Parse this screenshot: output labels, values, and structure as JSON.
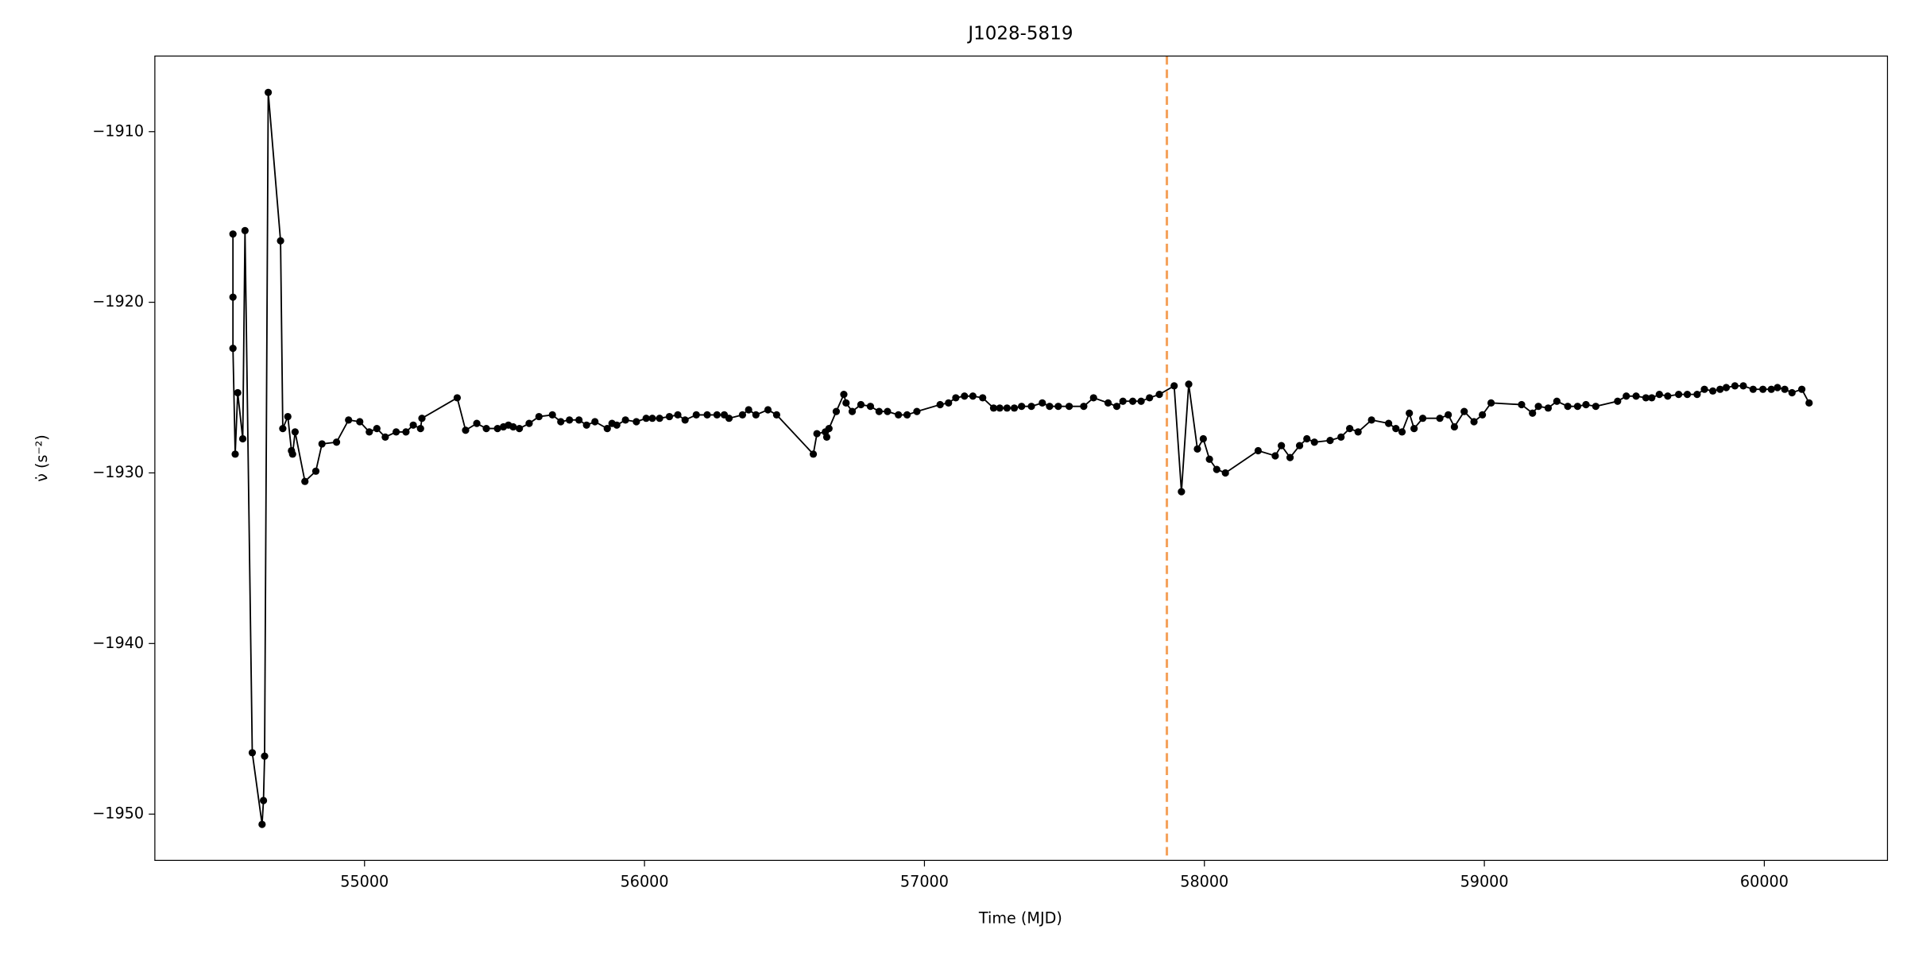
{
  "chart_data": {
    "type": "line",
    "title": "J1028-5819",
    "x_label": "Time (MJD)",
    "y_label": "ν̇ (s⁻²)",
    "xlim": [
      54251,
      60440
    ],
    "ylim": [
      -1952.71,
      -1905.57
    ],
    "xticks": [
      55000,
      56000,
      57000,
      58000,
      59000,
      60000
    ],
    "yticks": [
      {
        "value": -1910,
        "label": "−1910"
      },
      {
        "value": -1920,
        "label": "−1920"
      },
      {
        "value": -1930,
        "label": "−1930"
      },
      {
        "value": -1940,
        "label": "−1940"
      },
      {
        "value": -1950,
        "label": "−1950"
      }
    ],
    "vlines": [
      {
        "x": 57866,
        "color": "#f5a25c"
      }
    ],
    "x": [
      54530,
      54530,
      54530,
      54538,
      54547,
      54565,
      54573,
      54599,
      54634,
      54639,
      54643,
      54656,
      54700,
      54708,
      54726,
      54739,
      54743,
      54752,
      54787,
      54826,
      54848,
      54900,
      54943,
      54983,
      55017,
      55044,
      55074,
      55113,
      55148,
      55174,
      55200,
      55205,
      55331,
      55361,
      55401,
      55435,
      55475,
      55496,
      55514,
      55531,
      55553,
      55588,
      55623,
      55671,
      55701,
      55732,
      55766,
      55793,
      55823,
      55867,
      55884,
      55901,
      55932,
      55971,
      56006,
      56028,
      56054,
      56089,
      56119,
      56145,
      56185,
      56224,
      56259,
      56285,
      56302,
      56350,
      56372,
      56398,
      56441,
      56472,
      56603,
      56616,
      56646,
      56651,
      56659,
      56685,
      56712,
      56720,
      56742,
      56773,
      56807,
      56838,
      56868,
      56907,
      56938,
      56973,
      57056,
      57086,
      57112,
      57143,
      57173,
      57208,
      57247,
      57269,
      57295,
      57321,
      57347,
      57382,
      57421,
      57447,
      57478,
      57517,
      57569,
      57604,
      57656,
      57687,
      57709,
      57744,
      57774,
      57804,
      57839,
      57892,
      57918,
      57944,
      57975,
      57996,
      58018,
      58044,
      58075,
      58192,
      58253,
      58275,
      58306,
      58340,
      58366,
      58393,
      58449,
      58488,
      58519,
      58549,
      58597,
      58658,
      58684,
      58706,
      58732,
      58749,
      58780,
      58841,
      58871,
      58893,
      58928,
      58963,
      58993,
      59024,
      59133,
      59172,
      59193,
      59228,
      59259,
      59298,
      59333,
      59363,
      59398,
      59476,
      59507,
      59542,
      59577,
      59598,
      59625,
      59655,
      59694,
      59725,
      59760,
      59786,
      59816,
      59842,
      59864,
      59895,
      59925,
      59960,
      59995,
      60025,
      60047,
      60073,
      60099,
      60134,
      60160
    ],
    "series": [
      {
        "color": "#000000",
        "values": [
          -1916.0,
          -1919.7,
          -1922.7,
          -1928.9,
          -1925.3,
          -1928.0,
          -1915.8,
          -1946.4,
          -1950.6,
          -1949.2,
          -1946.6,
          -1907.7,
          -1916.4,
          -1927.4,
          -1926.7,
          -1928.7,
          -1928.9,
          -1927.6,
          -1930.5,
          -1929.9,
          -1928.3,
          -1928.2,
          -1926.9,
          -1927.0,
          -1927.6,
          -1927.4,
          -1927.9,
          -1927.6,
          -1927.6,
          -1927.2,
          -1927.4,
          -1926.8,
          -1925.6,
          -1927.5,
          -1927.1,
          -1927.4,
          -1927.4,
          -1927.3,
          -1927.2,
          -1927.3,
          -1927.4,
          -1927.1,
          -1926.7,
          -1926.6,
          -1927.0,
          -1926.9,
          -1926.9,
          -1927.2,
          -1927.0,
          -1927.4,
          -1927.1,
          -1927.2,
          -1926.9,
          -1927.0,
          -1926.8,
          -1926.8,
          -1926.8,
          -1926.7,
          -1926.6,
          -1926.9,
          -1926.6,
          -1926.6,
          -1926.6,
          -1926.6,
          -1926.8,
          -1926.6,
          -1926.3,
          -1926.6,
          -1926.3,
          -1926.6,
          -1928.9,
          -1927.7,
          -1927.6,
          -1927.9,
          -1927.4,
          -1926.4,
          -1925.4,
          -1925.9,
          -1926.4,
          -1926.0,
          -1926.1,
          -1926.4,
          -1926.4,
          -1926.6,
          -1926.6,
          -1926.4,
          -1926.0,
          -1925.9,
          -1925.6,
          -1925.5,
          -1925.5,
          -1925.6,
          -1926.2,
          -1926.2,
          -1926.2,
          -1926.2,
          -1926.1,
          -1926.1,
          -1925.9,
          -1926.1,
          -1926.1,
          -1926.1,
          -1926.1,
          -1925.6,
          -1925.9,
          -1926.1,
          -1925.8,
          -1925.8,
          -1925.8,
          -1925.6,
          -1925.4,
          -1924.9,
          -1931.1,
          -1924.8,
          -1928.6,
          -1928.0,
          -1929.2,
          -1929.8,
          -1930.0,
          -1928.7,
          -1929.0,
          -1928.4,
          -1929.1,
          -1928.4,
          -1928.0,
          -1928.2,
          -1928.1,
          -1927.9,
          -1927.4,
          -1927.6,
          -1926.9,
          -1927.1,
          -1927.4,
          -1927.6,
          -1926.5,
          -1927.4,
          -1926.8,
          -1926.8,
          -1926.6,
          -1927.3,
          -1926.4,
          -1927.0,
          -1926.6,
          -1925.9,
          -1926.0,
          -1926.5,
          -1926.1,
          -1926.2,
          -1925.8,
          -1926.1,
          -1926.1,
          -1926.0,
          -1926.1,
          -1925.8,
          -1925.5,
          -1925.5,
          -1925.6,
          -1925.6,
          -1925.4,
          -1925.5,
          -1925.4,
          -1925.4,
          -1925.4,
          -1925.1,
          -1925.2,
          -1925.1,
          -1925.0,
          -1924.9,
          -1924.9,
          -1925.1,
          -1925.1,
          -1925.1,
          -1925.0,
          -1925.1,
          -1925.3,
          -1925.1,
          -1925.9
        ]
      }
    ]
  }
}
